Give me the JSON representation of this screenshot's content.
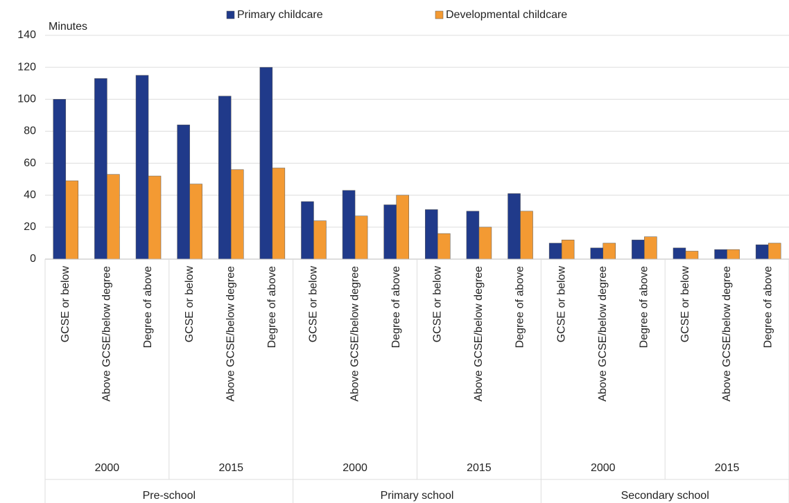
{
  "chart_data": {
    "type": "bar",
    "y_label": "Minutes",
    "categories": [
      "GCSE or below",
      "Above GCSE/below degree",
      "Degree of above",
      "GCSE or below",
      "Above GCSE/below degree",
      "Degree of above",
      "GCSE or below",
      "Above GCSE/below degree",
      "Degree of above",
      "GCSE or below",
      "Above GCSE/below degree",
      "Degree of above",
      "GCSE or below",
      "Above GCSE/below degree",
      "Degree of above",
      "GCSE or below",
      "Above GCSE/below degree",
      "Degree of above"
    ],
    "year_groups": [
      "2000",
      "2015",
      "2000",
      "2015",
      "2000",
      "2015"
    ],
    "school_groups": [
      "Pre-school",
      "Primary school",
      "Secondary school"
    ],
    "series": [
      {
        "name": "Primary childcare",
        "color": "#203a8a",
        "values": [
          100,
          113,
          115,
          84,
          102,
          120,
          36,
          43,
          34,
          31,
          30,
          41,
          10,
          7,
          12,
          7,
          6,
          9
        ]
      },
      {
        "name": "Developmental childcare",
        "color": "#f39a33",
        "values": [
          49,
          53,
          52,
          47,
          56,
          57,
          24,
          27,
          40,
          16,
          20,
          30,
          12,
          10,
          14,
          5,
          6,
          10
        ]
      }
    ],
    "ylim": [
      0,
      140
    ],
    "yticks": [
      0,
      20,
      40,
      60,
      80,
      100,
      120,
      140
    ],
    "grid": true,
    "legend": "top"
  }
}
